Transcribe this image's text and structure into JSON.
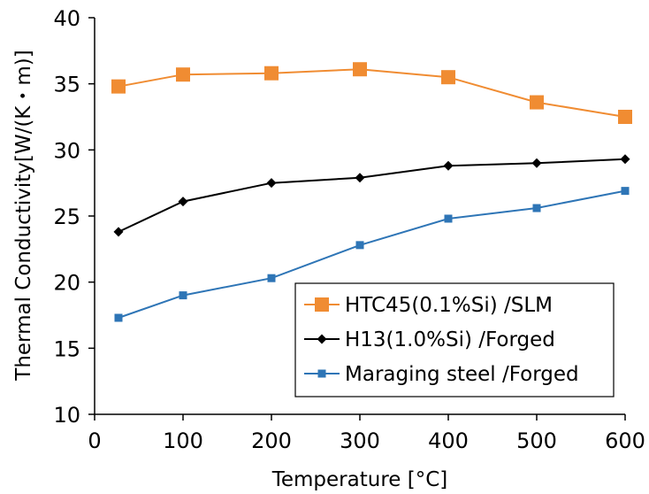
{
  "chart_data": {
    "type": "line",
    "xlabel": "Temperature [°C]",
    "ylabel": "Thermal Conductivity[W/(K・m)]",
    "xlim": [
      0,
      600
    ],
    "ylim": [
      10,
      40
    ],
    "xticks": [
      0,
      100,
      200,
      300,
      400,
      500,
      600
    ],
    "yticks": [
      10,
      15,
      20,
      25,
      30,
      35,
      40
    ],
    "grid": false,
    "legend_position": "bottom-right",
    "series": [
      {
        "name": "HTC45(0.1%Si) /SLM",
        "color": "#F08C32",
        "marker": "square-large",
        "x": [
          27,
          100,
          200,
          300,
          400,
          500,
          600
        ],
        "y": [
          34.8,
          35.7,
          35.8,
          36.1,
          35.5,
          33.6,
          32.5
        ]
      },
      {
        "name": "H13(1.0%Si) /Forged",
        "color": "#000000",
        "marker": "diamond",
        "x": [
          27,
          100,
          200,
          300,
          400,
          500,
          600
        ],
        "y": [
          23.8,
          26.1,
          27.5,
          27.9,
          28.8,
          29.0,
          29.3
        ]
      },
      {
        "name": "Maraging steel /Forged",
        "color": "#2E75B6",
        "marker": "square-small",
        "x": [
          27,
          100,
          200,
          300,
          400,
          500,
          600
        ],
        "y": [
          17.3,
          19.0,
          20.3,
          22.8,
          24.8,
          25.6,
          26.9
        ]
      }
    ]
  }
}
